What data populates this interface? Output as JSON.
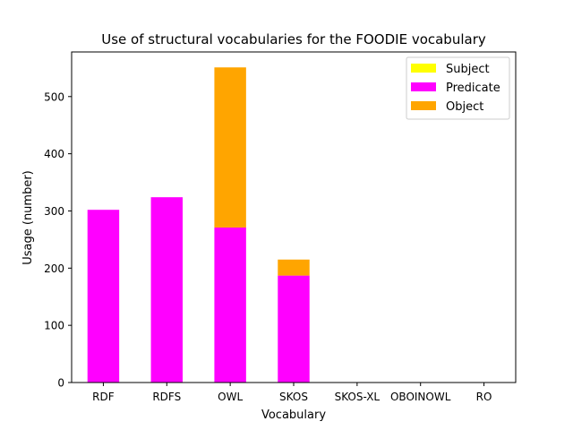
{
  "chart_data": {
    "type": "bar",
    "stacked": true,
    "title": "Use of structural vocabularies for the FOODIE vocabulary",
    "xlabel": "Vocabulary",
    "ylabel": "Usage (number)",
    "categories": [
      "RDF",
      "RDFS",
      "OWL",
      "SKOS",
      "SKOS-XL",
      "OBOINOWL",
      "RO"
    ],
    "series": [
      {
        "name": "Subject",
        "color": "#ffff00",
        "values": [
          0,
          0,
          0,
          0,
          0,
          0,
          0
        ]
      },
      {
        "name": "Predicate",
        "color": "#ff00ff",
        "values": [
          302,
          324,
          271,
          187,
          0,
          0,
          0
        ]
      },
      {
        "name": "Object",
        "color": "#ffa500",
        "values": [
          0,
          0,
          280,
          28,
          0,
          0,
          0
        ]
      }
    ],
    "ylim": [
      0,
      578
    ],
    "yticks": [
      0,
      100,
      200,
      300,
      400,
      500
    ],
    "grid": false,
    "legend": "top-right"
  }
}
